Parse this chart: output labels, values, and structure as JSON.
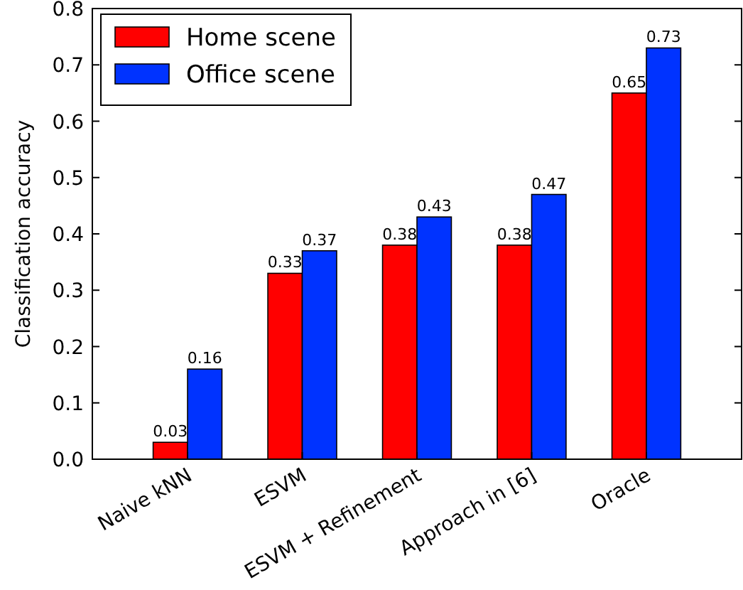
{
  "chart_data": {
    "type": "bar",
    "ylabel": "Classification accuracy",
    "categories": [
      "Naive kNN",
      "ESVM",
      "ESVM + Refinement",
      "Approach in [6]",
      "Oracle"
    ],
    "series": [
      {
        "name": "Home scene",
        "color": "#ff0000",
        "values": [
          0.03,
          0.33,
          0.38,
          0.38,
          0.65
        ]
      },
      {
        "name": "Office scene",
        "color": "#0033ff",
        "values": [
          0.16,
          0.37,
          0.43,
          0.47,
          0.73
        ]
      }
    ],
    "ylim": [
      0,
      0.8
    ],
    "yticks": [
      {
        "value": 0,
        "label": "0.0"
      },
      0.1,
      0.2,
      0.3,
      0.4,
      0.5,
      0.6,
      0.7,
      0.8
    ],
    "data_labels": true,
    "legend": "top left",
    "grid": false
  }
}
